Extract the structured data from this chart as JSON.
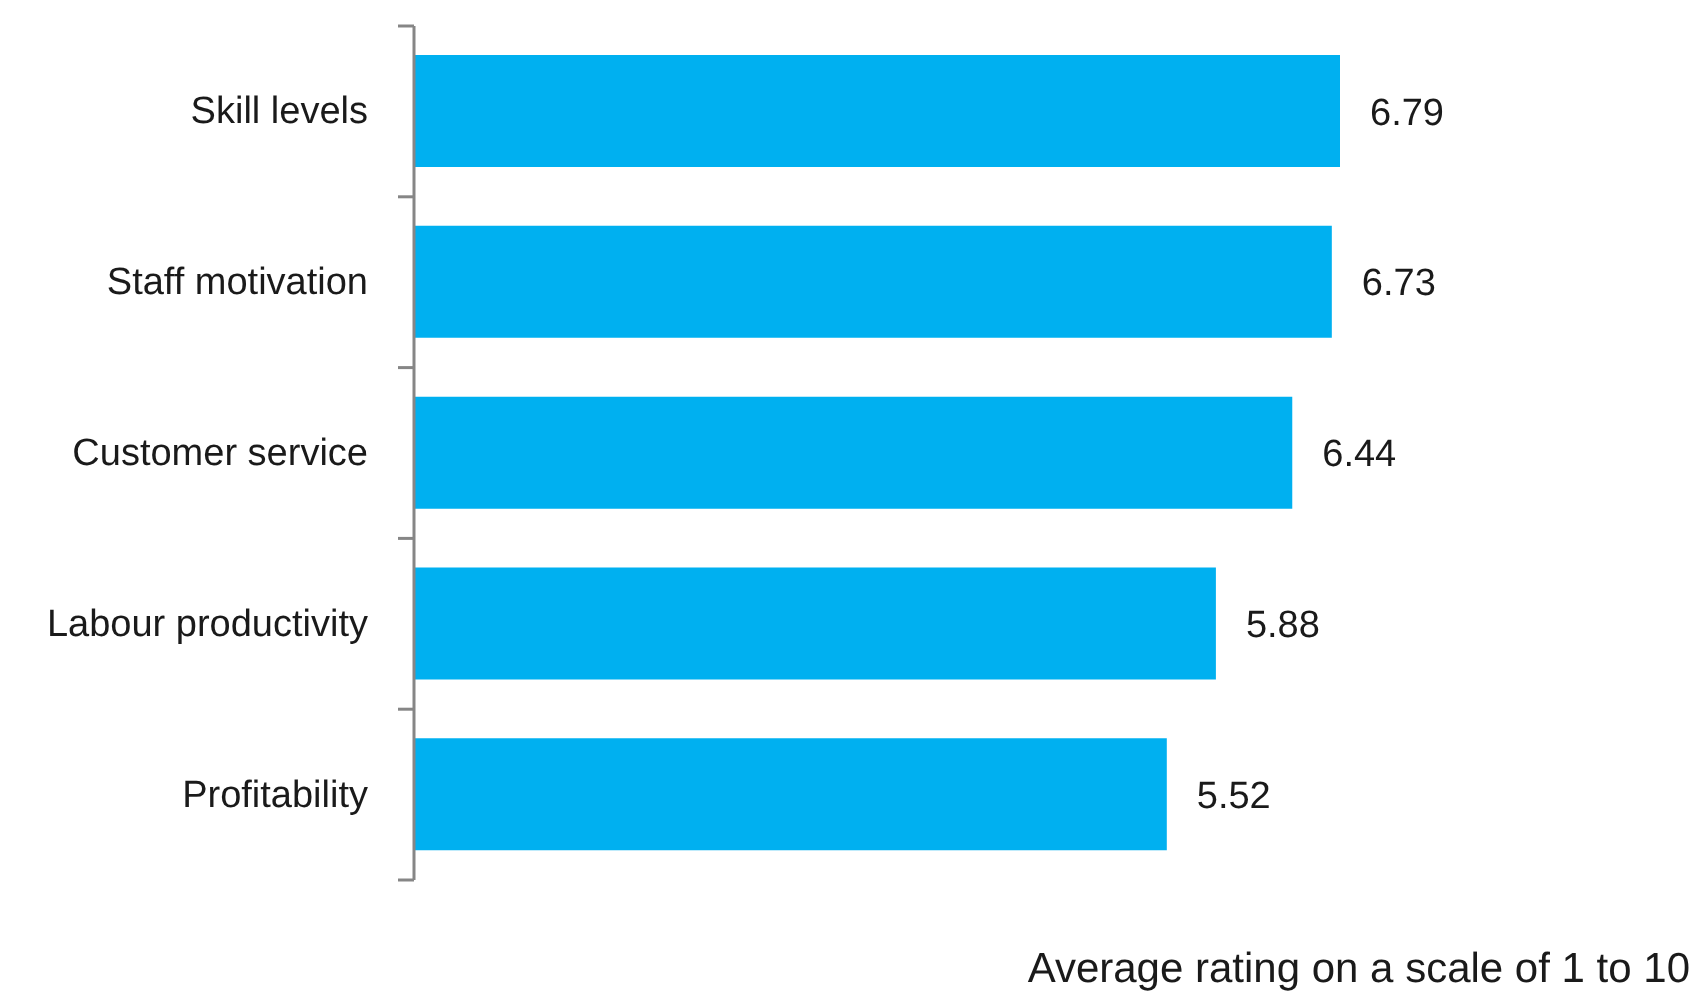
{
  "chart_data": {
    "type": "bar",
    "orientation": "horizontal",
    "categories": [
      "Skill levels",
      "Staff motivation",
      "Customer service",
      "Labour productivity",
      "Profitability"
    ],
    "values": [
      6.79,
      6.73,
      6.44,
      5.88,
      5.52
    ],
    "color": "#00b0f0",
    "xlabel": "Average rating on a scale of 1 to 10",
    "data_labels": true,
    "tick_labels": "y"
  }
}
